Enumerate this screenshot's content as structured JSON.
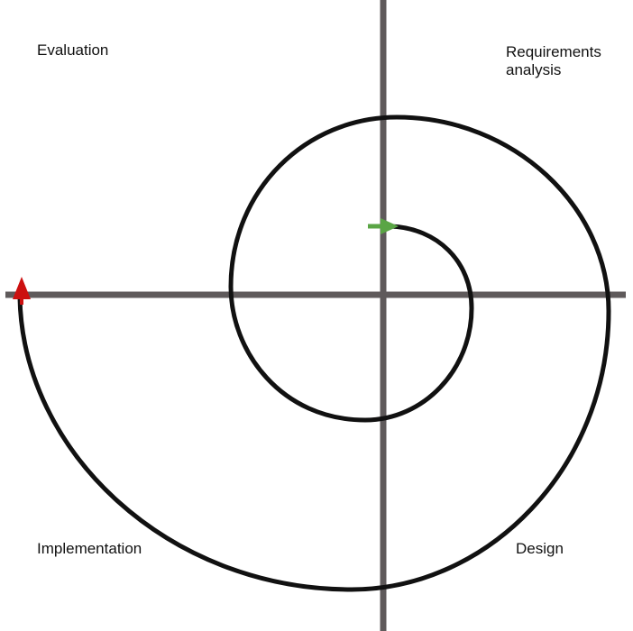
{
  "quadrants": {
    "top_left": "Evaluation",
    "top_right": {
      "line1": "Requirements",
      "line2": "analysis"
    },
    "bottom_left": "Implementation",
    "bottom_right": "Design"
  },
  "colors": {
    "axis": "#5f5a5b",
    "spiral": "#111111",
    "start_arrow": "#5aa545",
    "end_arrow": "#cc1010"
  }
}
